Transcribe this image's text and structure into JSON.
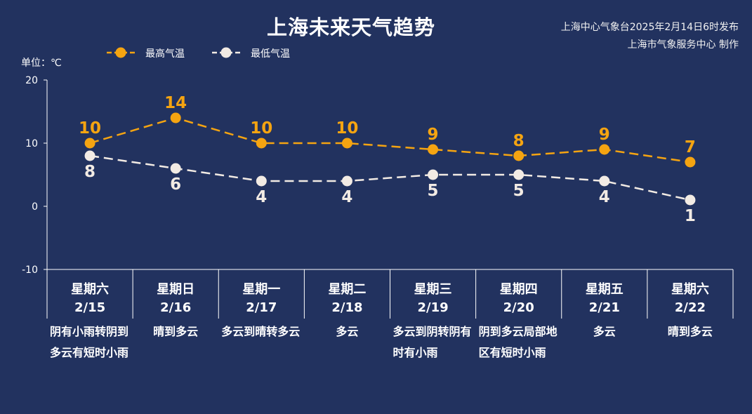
{
  "title": "上海未来天气趋势",
  "publisher": {
    "line1": "上海中心气象台2025年2月14日6时发布",
    "line2": "上海市气象服务中心 制作"
  },
  "unit": "单位：℃",
  "colors": {
    "background": "#22325f",
    "high": "#f5a411",
    "low": "#f2ebe4",
    "axis": "#ffffff"
  },
  "chart_data": {
    "type": "line",
    "title": "上海未来天气趋势",
    "ylabel": "单位：℃",
    "ylim": [
      -10,
      20
    ],
    "yticks": [
      -10,
      0,
      10,
      20
    ],
    "grid": false,
    "legend_position": "top-left",
    "categories": [
      "2/15",
      "2/16",
      "2/17",
      "2/18",
      "2/19",
      "2/20",
      "2/21",
      "2/22"
    ],
    "weekdays": [
      "星期六",
      "星期日",
      "星期一",
      "星期二",
      "星期三",
      "星期四",
      "星期五",
      "星期六"
    ],
    "weather": [
      "阴有小雨转阴到多云有短时小雨",
      "晴到多云",
      "多云到晴转多云",
      "多云",
      "多云到阴转阴有时有小雨",
      "阴到多云局部地区有短时小雨",
      "多云",
      "晴到多云"
    ],
    "series": [
      {
        "name": "最高气温",
        "values": [
          10,
          14,
          10,
          10,
          9,
          8,
          9,
          7
        ],
        "color": "#f5a411"
      },
      {
        "name": "最低气温",
        "values": [
          8,
          6,
          4,
          4,
          5,
          5,
          4,
          1
        ],
        "color": "#f2ebe4"
      }
    ]
  }
}
